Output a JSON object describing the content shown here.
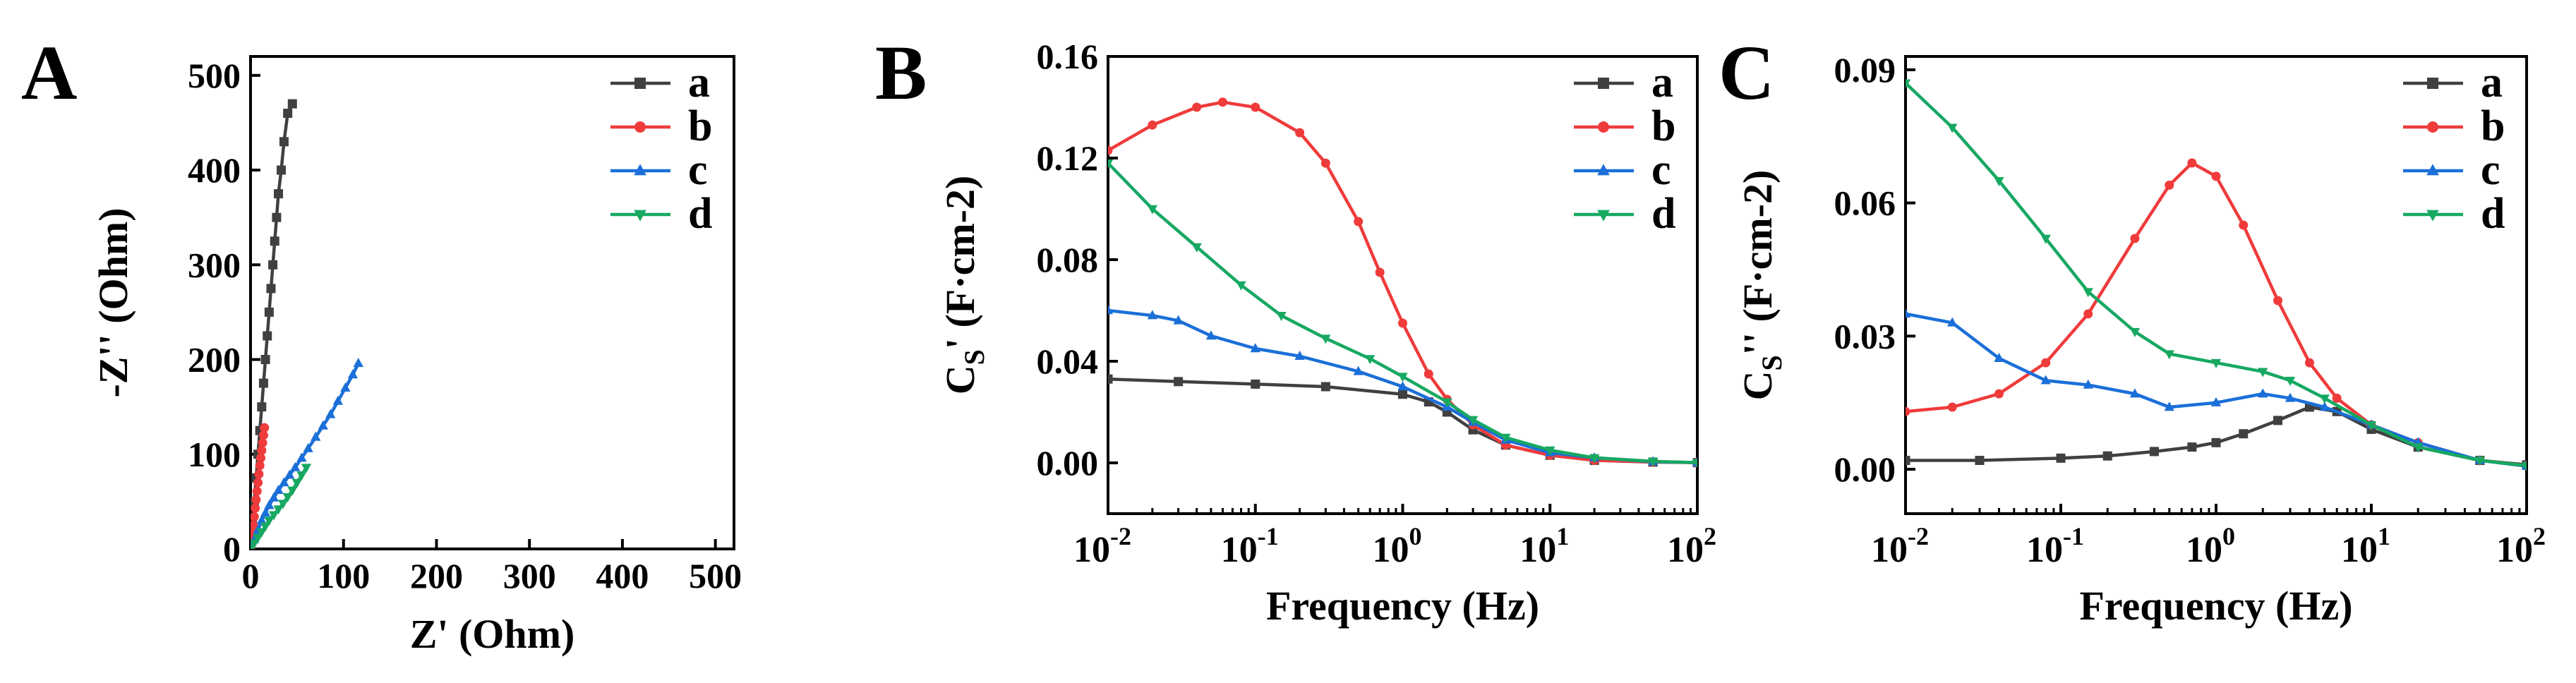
{
  "colors": {
    "a": "#404040",
    "b": "#ef3b3b",
    "c": "#1b6fd8",
    "d": "#17a862",
    "axis": "#000000"
  },
  "chart_data": [
    {
      "id": "A",
      "panel_label": "A",
      "type": "scatter",
      "title": "",
      "xlabel": "Z' (Ohm)",
      "ylabel": "-Z'' (Ohm)",
      "xlim": [
        0,
        520
      ],
      "ylim": [
        0,
        520
      ],
      "xscale": "linear",
      "x_ticks": [
        0,
        100,
        200,
        300,
        400,
        500
      ],
      "x_tick_labels": [
        "0",
        "100",
        "200",
        "300",
        "400",
        "500"
      ],
      "y_ticks": [
        0,
        100,
        200,
        300,
        400,
        500
      ],
      "y_tick_labels": [
        "0",
        "100",
        "200",
        "300",
        "400",
        "500"
      ],
      "legend": {
        "position": "top-right",
        "entries": [
          "a",
          "b",
          "c",
          "d"
        ]
      },
      "series": [
        {
          "name": "a",
          "marker": "square",
          "x": [
            0,
            2,
            4,
            6,
            8,
            10,
            12,
            14,
            16,
            18,
            20,
            22,
            24,
            26,
            28,
            30,
            33,
            36,
            40,
            45
          ],
          "y": [
            0,
            25,
            50,
            75,
            100,
            125,
            150,
            175,
            200,
            225,
            250,
            275,
            300,
            325,
            350,
            375,
            400,
            430,
            460,
            470
          ]
        },
        {
          "name": "b",
          "marker": "circle",
          "x": [
            0,
            1,
            2,
            3,
            4,
            5,
            6,
            7,
            8,
            9,
            10,
            11,
            12,
            13,
            14,
            15
          ],
          "y": [
            0,
            8,
            16,
            25,
            34,
            43,
            52,
            61,
            70,
            79,
            88,
            96,
            104,
            112,
            120,
            128
          ]
        },
        {
          "name": "c",
          "marker": "triangle-up",
          "x": [
            0,
            4,
            8,
            12,
            16,
            20,
            25,
            30,
            36,
            42,
            48,
            55,
            62,
            70,
            78,
            86,
            94,
            102,
            110,
            116
          ],
          "y": [
            0,
            10,
            20,
            30,
            38,
            46,
            54,
            62,
            70,
            78,
            86,
            96,
            106,
            118,
            130,
            142,
            156,
            170,
            184,
            196
          ]
        },
        {
          "name": "d",
          "marker": "triangle-down",
          "x": [
            0,
            4,
            8,
            12,
            16,
            20,
            25,
            30,
            35,
            40,
            45,
            50,
            55,
            60
          ],
          "y": [
            0,
            6,
            12,
            18,
            24,
            30,
            36,
            42,
            48,
            55,
            62,
            70,
            78,
            86
          ]
        }
      ]
    },
    {
      "id": "B",
      "panel_label": "B",
      "type": "line",
      "title": "",
      "xlabel": "Frequency (Hz)",
      "ylabel": "C_S' (F·cm-2)",
      "ylabel_main": "C",
      "ylabel_sub": "S",
      "ylabel_rest": "' (F·cm-2)",
      "xscale": "log",
      "xlim": [
        0.01,
        100
      ],
      "ylim": [
        -0.02,
        0.16
      ],
      "x_ticks": [
        0.01,
        0.1,
        1,
        10,
        100
      ],
      "x_tick_bases": [
        "10",
        "10",
        "10",
        "10",
        "10"
      ],
      "x_tick_exps": [
        "-2",
        "-1",
        "0",
        "1",
        "2"
      ],
      "y_ticks": [
        0.0,
        0.04,
        0.08,
        0.12,
        0.16
      ],
      "y_tick_labels": [
        "0.00",
        "0.04",
        "0.08",
        "0.12",
        "0.16"
      ],
      "legend": {
        "position": "top-right",
        "entries": [
          "a",
          "b",
          "c",
          "d"
        ]
      },
      "series": [
        {
          "name": "a",
          "marker": "square",
          "x": [
            0.01,
            0.03,
            0.1,
            0.3,
            1,
            1.5,
            2,
            3,
            5,
            10,
            20,
            50,
            100
          ],
          "y": [
            0.033,
            0.032,
            0.031,
            0.03,
            0.027,
            0.024,
            0.02,
            0.013,
            0.007,
            0.003,
            0.001,
            0.0003,
            0.0001
          ]
        },
        {
          "name": "b",
          "marker": "circle",
          "x": [
            0.01,
            0.02,
            0.04,
            0.06,
            0.1,
            0.2,
            0.3,
            0.5,
            0.7,
            1,
            1.5,
            2,
            3,
            5,
            10,
            20,
            50,
            100
          ],
          "y": [
            0.123,
            0.133,
            0.14,
            0.142,
            0.14,
            0.13,
            0.118,
            0.095,
            0.075,
            0.055,
            0.035,
            0.025,
            0.015,
            0.007,
            0.003,
            0.001,
            0.0004,
            0.0001
          ]
        },
        {
          "name": "c",
          "marker": "triangle-up",
          "x": [
            0.01,
            0.02,
            0.03,
            0.05,
            0.1,
            0.2,
            0.5,
            1,
            2,
            3,
            5,
            10,
            20,
            50,
            100
          ],
          "y": [
            0.06,
            0.058,
            0.056,
            0.05,
            0.045,
            0.042,
            0.036,
            0.03,
            0.022,
            0.016,
            0.009,
            0.004,
            0.002,
            0.0005,
            0.0001
          ]
        },
        {
          "name": "d",
          "marker": "triangle-down",
          "x": [
            0.01,
            0.02,
            0.04,
            0.08,
            0.15,
            0.3,
            0.6,
            1,
            2,
            3,
            5,
            10,
            20,
            50,
            100
          ],
          "y": [
            0.118,
            0.1,
            0.085,
            0.07,
            0.058,
            0.049,
            0.041,
            0.034,
            0.024,
            0.017,
            0.01,
            0.005,
            0.002,
            0.0006,
            0.0001
          ]
        }
      ]
    },
    {
      "id": "C",
      "panel_label": "C",
      "type": "line",
      "title": "",
      "xlabel": "Frequency (Hz)",
      "ylabel": "C_S'' (F·cm-2)",
      "ylabel_main": "C",
      "ylabel_sub": "S",
      "ylabel_rest": "'' (F·cm-2)",
      "xscale": "log",
      "xlim": [
        0.01,
        100
      ],
      "ylim": [
        -0.01,
        0.093
      ],
      "x_ticks": [
        0.01,
        0.1,
        1,
        10,
        100
      ],
      "x_tick_bases": [
        "10",
        "10",
        "10",
        "10",
        "10"
      ],
      "x_tick_exps": [
        "-2",
        "-1",
        "0",
        "1",
        "2"
      ],
      "y_ticks": [
        0.0,
        0.03,
        0.06,
        0.09
      ],
      "y_tick_labels": [
        "0.00",
        "0.03",
        "0.06",
        "0.09"
      ],
      "legend": {
        "position": "top-right",
        "entries": [
          "a",
          "b",
          "c",
          "d"
        ]
      },
      "series": [
        {
          "name": "a",
          "marker": "square",
          "x": [
            0.01,
            0.03,
            0.1,
            0.2,
            0.4,
            0.7,
            1,
            1.5,
            2.5,
            4,
            6,
            10,
            20,
            50,
            100
          ],
          "y": [
            0.002,
            0.002,
            0.0025,
            0.003,
            0.004,
            0.005,
            0.006,
            0.008,
            0.011,
            0.014,
            0.013,
            0.009,
            0.005,
            0.002,
            0.001
          ]
        },
        {
          "name": "b",
          "marker": "circle",
          "x": [
            0.01,
            0.02,
            0.04,
            0.08,
            0.15,
            0.3,
            0.5,
            0.7,
            1,
            1.5,
            2.5,
            4,
            6,
            10,
            20,
            50,
            100
          ],
          "y": [
            0.013,
            0.014,
            0.017,
            0.024,
            0.035,
            0.052,
            0.064,
            0.069,
            0.066,
            0.055,
            0.038,
            0.024,
            0.016,
            0.01,
            0.006,
            0.002,
            0.0008
          ]
        },
        {
          "name": "c",
          "marker": "triangle-up",
          "x": [
            0.01,
            0.02,
            0.04,
            0.08,
            0.15,
            0.3,
            0.5,
            1,
            2,
            3,
            5,
            10,
            20,
            50,
            100
          ],
          "y": [
            0.035,
            0.033,
            0.025,
            0.02,
            0.019,
            0.017,
            0.014,
            0.015,
            0.017,
            0.016,
            0.014,
            0.01,
            0.006,
            0.002,
            0.0007
          ]
        },
        {
          "name": "d",
          "marker": "triangle-down",
          "x": [
            0.01,
            0.02,
            0.04,
            0.08,
            0.15,
            0.3,
            0.5,
            1,
            2,
            3,
            5,
            10,
            20,
            50,
            100
          ],
          "y": [
            0.087,
            0.077,
            0.065,
            0.052,
            0.04,
            0.031,
            0.026,
            0.024,
            0.022,
            0.02,
            0.016,
            0.01,
            0.005,
            0.002,
            0.0008
          ]
        }
      ]
    }
  ]
}
